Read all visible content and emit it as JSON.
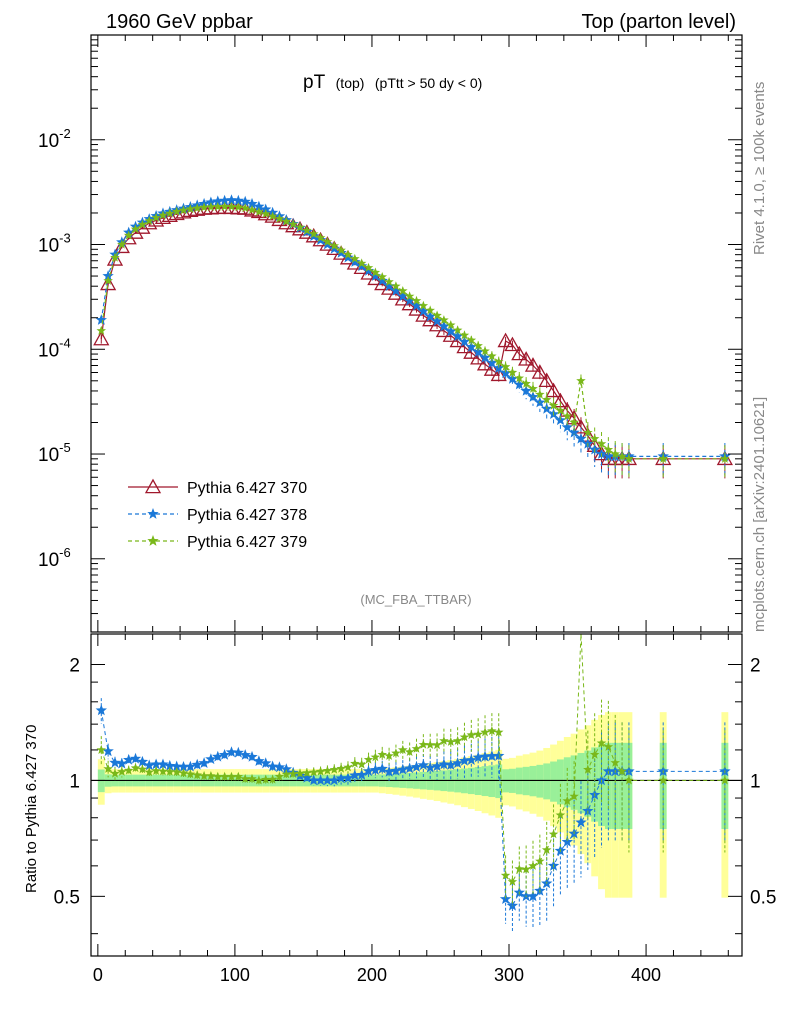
{
  "header": {
    "left": "1960 GeV ppbar",
    "right": "Top (parton level)"
  },
  "side_labels": {
    "top": "Rivet 4.1.0, ≥ 100k events",
    "bottom": "mcplots.cern.ch [arXiv:2401.10621]"
  },
  "plot_title": {
    "main": "pT",
    "sub": "(top)",
    "cut": "(pTtt > 50 dy < 0)"
  },
  "watermark": "(MC_FBA_TTBAR)",
  "ratio_ylabel": "Ratio to Pythia 6.427 370",
  "colors": {
    "s370": "#a0182c",
    "s378": "#1a78d8",
    "s379": "#7ab81a",
    "band_green": "#99f099",
    "band_yellow": "#ffff99"
  },
  "chart_data": {
    "type": "line",
    "title": "pT (top) (pTtt > 50 dy < 0)",
    "xlabel": "",
    "ylabel": "",
    "xlim": [
      -5,
      470
    ],
    "ylim": [
      2e-07,
      0.1
    ],
    "yscale": "log",
    "x_ticks": [
      "0",
      "100",
      "200",
      "300",
      "400"
    ],
    "x_tick_values": [
      0,
      100,
      200,
      300,
      400
    ],
    "y_ticks": [
      {
        "base": "10",
        "exp": "-2",
        "value": 0.01
      },
      {
        "base": "10",
        "exp": "-3",
        "value": 0.001
      },
      {
        "base": "10",
        "exp": "-4",
        "value": 0.0001
      },
      {
        "base": "10",
        "exp": "-5",
        "value": 1e-05
      },
      {
        "base": "10",
        "exp": "-6",
        "value": 1e-06
      }
    ],
    "legend": [
      "Pythia 6.427 370",
      "Pythia 6.427 378",
      "Pythia 6.427 379"
    ],
    "legend_position": "bottom-left",
    "x": [
      2.5,
      7.5,
      12.5,
      17.5,
      22.5,
      27.5,
      32.5,
      37.5,
      42.5,
      47.5,
      52.5,
      57.5,
      62.5,
      67.5,
      72.5,
      77.5,
      82.5,
      87.5,
      92.5,
      97.5,
      102.5,
      107.5,
      112.5,
      117.5,
      122.5,
      127.5,
      132.5,
      137.5,
      142.5,
      147.5,
      152.5,
      157.5,
      162.5,
      167.5,
      172.5,
      177.5,
      182.5,
      187.5,
      192.5,
      197.5,
      202.5,
      207.5,
      212.5,
      217.5,
      222.5,
      227.5,
      232.5,
      237.5,
      242.5,
      247.5,
      252.5,
      257.5,
      262.5,
      267.5,
      272.5,
      277.5,
      282.5,
      287.5,
      292.5,
      297.5,
      302.5,
      307.5,
      312.5,
      317.5,
      322.5,
      327.5,
      332.5,
      337.5,
      342.5,
      347.5,
      352.5,
      357.5,
      362.5,
      367.5,
      372.5,
      377.5,
      382.5,
      387.5,
      412.5,
      457.5
    ],
    "series": [
      {
        "name": "Pythia 6.427 370",
        "values": [
          0.000125,
          0.00042,
          0.00072,
          0.00095,
          0.00115,
          0.0013,
          0.00145,
          0.0016,
          0.0017,
          0.0018,
          0.00188,
          0.00196,
          0.00203,
          0.0021,
          0.00215,
          0.0022,
          0.00222,
          0.00224,
          0.00225,
          0.00224,
          0.00222,
          0.0022,
          0.00212,
          0.00205,
          0.00195,
          0.00185,
          0.00172,
          0.0016,
          0.0015,
          0.0014,
          0.0013,
          0.0012,
          0.0011,
          0.001,
          0.00091,
          0.00082,
          0.00074,
          0.00066,
          0.0006,
          0.00053,
          0.00047,
          0.00042,
          0.00038,
          0.00034,
          0.0003,
          0.00027,
          0.00024,
          0.00021,
          0.00019,
          0.00017,
          0.00015,
          0.000135,
          0.00012,
          0.000105,
          9.3e-05,
          8.2e-05,
          7.2e-05,
          6.4e-05,
          5.7e-05,
          0.00012,
          0.00011,
          9e-05,
          8e-05,
          7e-05,
          6e-05,
          5e-05,
          4e-05,
          3.2e-05,
          2.6e-05,
          2.2e-05,
          1.8e-05,
          1.5e-05,
          1.2e-05,
          1e-05,
          9e-06,
          9e-06,
          9e-06,
          9e-06,
          9e-06,
          9e-06
        ]
      },
      {
        "name": "Pythia 6.427 378",
        "values": [
          0.00019,
          0.0005,
          0.0008,
          0.00105,
          0.0013,
          0.00148,
          0.00162,
          0.00175,
          0.00187,
          0.00198,
          0.00205,
          0.00213,
          0.0022,
          0.00228,
          0.00236,
          0.00244,
          0.00252,
          0.00258,
          0.00262,
          0.00265,
          0.00262,
          0.00256,
          0.00244,
          0.0023,
          0.00216,
          0.00201,
          0.00186,
          0.00171,
          0.00157,
          0.00144,
          0.00132,
          0.0012,
          0.0011,
          0.001,
          0.00091,
          0.00083,
          0.00075,
          0.00068,
          0.00062,
          0.00056,
          0.0005,
          0.00045,
          0.0004,
          0.00036,
          0.00032,
          0.00029,
          0.00026,
          0.00023,
          0.000205,
          0.000185,
          0.000165,
          0.000148,
          0.000133,
          0.000118,
          0.000105,
          9.4e-05,
          8.3e-05,
          7.4e-05,
          6.6e-05,
          5.9e-05,
          5.2e-05,
          4.6e-05,
          4e-05,
          3.5e-05,
          3.1e-05,
          2.7e-05,
          2.4e-05,
          2.1e-05,
          1.8e-05,
          1.6e-05,
          1.4e-05,
          1.25e-05,
          1.1e-05,
          1e-05,
          9.5e-06,
          9.5e-06,
          9.5e-06,
          9.5e-06,
          9.5e-06,
          9.5e-06
        ]
      },
      {
        "name": "Pythia 6.427 379",
        "values": [
          0.00015,
          0.00045,
          0.00075,
          0.001,
          0.00122,
          0.0014,
          0.00155,
          0.00168,
          0.0018,
          0.0019,
          0.00198,
          0.00206,
          0.00212,
          0.00218,
          0.00222,
          0.00226,
          0.00228,
          0.00229,
          0.0023,
          0.00229,
          0.00227,
          0.00222,
          0.00214,
          0.00205,
          0.00196,
          0.00186,
          0.00176,
          0.00166,
          0.00156,
          0.00146,
          0.00136,
          0.00126,
          0.00116,
          0.00106,
          0.00097,
          0.00088,
          0.0008,
          0.00073,
          0.00066,
          0.0006,
          0.00054,
          0.00049,
          0.00044,
          0.0004,
          0.00036,
          0.00032,
          0.00029,
          0.00026,
          0.000235,
          0.00021,
          0.00019,
          0.00017,
          0.000152,
          0.000136,
          0.000122,
          0.000108,
          9.6e-05,
          8.6e-05,
          7.6e-05,
          6.8e-05,
          6e-05,
          5.3e-05,
          4.7e-05,
          4.2e-05,
          3.7e-05,
          3.3e-05,
          2.9e-05,
          2.6e-05,
          2.3e-05,
          2e-05,
          5e-05,
          1.6e-05,
          1.4e-05,
          1.25e-05,
          1.1e-05,
          1e-05,
          9.5e-06,
          9e-06,
          9e-06,
          9e-06
        ]
      }
    ],
    "ratio": {
      "ylabel": "Ratio to Pythia 6.427 370",
      "ylim": [
        0.35,
        2.4
      ],
      "yscale": "log",
      "y_ticks": [
        "0.5",
        "1",
        "2"
      ],
      "y_tick_values": [
        0.5,
        1,
        2
      ]
    }
  }
}
